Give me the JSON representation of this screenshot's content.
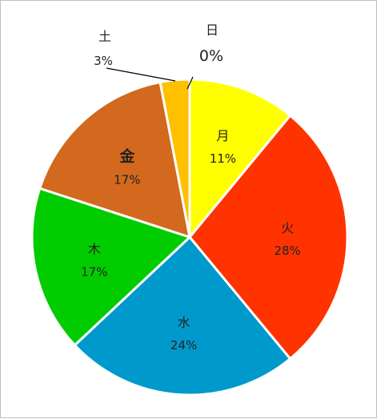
{
  "chart_data": {
    "type": "pie",
    "title": "",
    "slices": [
      {
        "label": "日",
        "value": 0,
        "value_label": "0%",
        "color": "#d9d9d9"
      },
      {
        "label": "月",
        "value": 11,
        "value_label": "11%",
        "color": "#ffff00"
      },
      {
        "label": "火",
        "value": 28,
        "value_label": "28%",
        "color": "#ff3300"
      },
      {
        "label": "水",
        "value": 24,
        "value_label": "24%",
        "color": "#0099cc"
      },
      {
        "label": "木",
        "value": 17,
        "value_label": "17%",
        "color": "#00cc00"
      },
      {
        "label": "金",
        "value": 17,
        "value_label": "17%",
        "color": "#d2691e"
      },
      {
        "label": "土",
        "value": 3,
        "value_label": "3%",
        "color": "#ffc000"
      }
    ],
    "start_angle_deg": 0,
    "direction": "clockwise",
    "legend": "none",
    "labels_inside": true
  }
}
